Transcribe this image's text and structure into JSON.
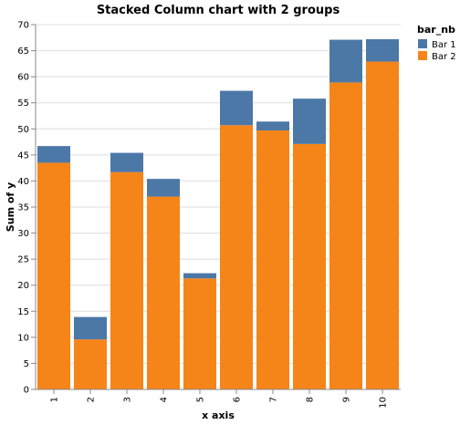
{
  "chart_data": {
    "type": "bar",
    "stacked": true,
    "title": "Stacked Column chart with 2 groups",
    "xlabel": "x axis",
    "ylabel": "Sum of y",
    "categories": [
      "1",
      "2",
      "3",
      "4",
      "5",
      "6",
      "7",
      "8",
      "9",
      "10"
    ],
    "ylim": [
      0,
      70
    ],
    "yticks": [
      0,
      5,
      10,
      15,
      20,
      25,
      30,
      35,
      40,
      45,
      50,
      55,
      60,
      65,
      70
    ],
    "grid": true,
    "legend": {
      "title": "bar_nb",
      "position": "top-right"
    },
    "series": [
      {
        "name": "Bar 2",
        "color": "#f58518",
        "values": [
          43.5,
          9.6,
          41.7,
          37.0,
          21.3,
          50.7,
          49.7,
          47.1,
          58.9,
          62.9
        ]
      },
      {
        "name": "Bar 1",
        "color": "#4c78a8",
        "values": [
          3.2,
          4.3,
          3.7,
          3.4,
          1.0,
          6.6,
          1.7,
          8.7,
          8.2,
          4.3
        ]
      }
    ],
    "legend_order": [
      "Bar 1",
      "Bar 2"
    ]
  }
}
